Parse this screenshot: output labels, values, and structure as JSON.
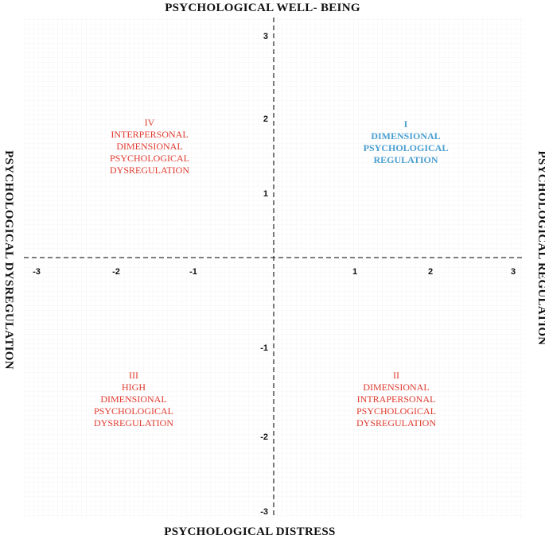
{
  "axes": {
    "top_label": "PSYCHOLOGICAL  WELL- BEING",
    "bottom_label": "PSYCHOLOGICAL DISTRESS",
    "left_label": "PSYCHOLOGICAL DYSREGULATION",
    "right_label": "PSYCHOLOGICAL REGULATION",
    "x_range": [
      -3,
      3
    ],
    "y_range": [
      -3,
      3
    ],
    "x_ticks": [
      "-3",
      "-2",
      "-1",
      "1",
      "2",
      "3"
    ],
    "y_ticks": [
      "3",
      "2",
      "1",
      "-1",
      "-2",
      "-3"
    ]
  },
  "quadrants": [
    {
      "id": "I",
      "color": "#4a9fd0",
      "bold": true,
      "lines": [
        "I",
        "DIMENSIONAL",
        "PSYCHOLOGICAL",
        "REGULATION"
      ]
    },
    {
      "id": "II",
      "color": "#e03a2f",
      "bold": false,
      "lines": [
        "II",
        "DIMENSIONAL",
        "INTRAPERSONAL",
        "PSYCHOLOGICAL",
        "DYSREGULATION"
      ]
    },
    {
      "id": "III",
      "color": "#e03a2f",
      "bold": false,
      "lines": [
        "III",
        "HIGH",
        "DIMENSIONAL",
        "PSYCHOLOGICAL",
        "DYSREGULATION"
      ]
    },
    {
      "id": "IV",
      "color": "#e03a2f",
      "bold": false,
      "lines": [
        "IV",
        "INTERPERSONAL",
        "DIMENSIONAL",
        "PSYCHOLOGICAL",
        "DYSREGULATION"
      ]
    }
  ],
  "colors": {
    "axis": "#333333",
    "grid": "#ececec",
    "text": "#111111"
  }
}
